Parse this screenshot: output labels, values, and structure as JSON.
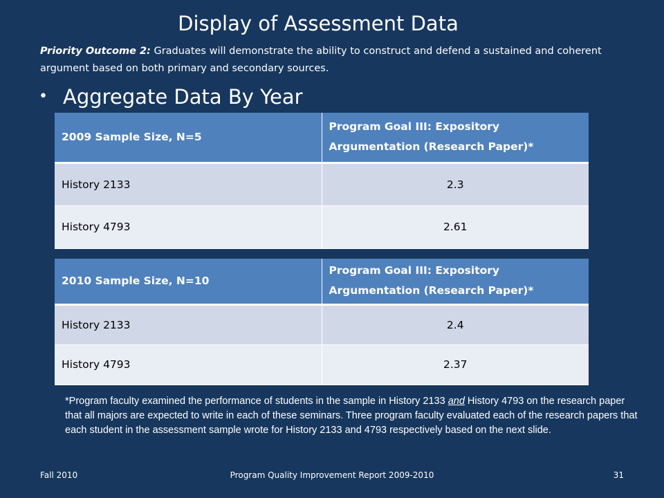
{
  "slide": {
    "title": "Display of Assessment Data",
    "priority_lead": "Priority Outcome 2:",
    "priority_text": " Graduates will demonstrate the ability to construct and defend a sustained and coherent argument based on both primary and secondary sources.",
    "bullet": "Aggregate Data By Year"
  },
  "tables": [
    {
      "header": [
        "2009 Sample Size, N=5",
        "Program Goal III: Expository Argumentation (Research Paper)*"
      ],
      "rows": [
        {
          "course": "History  2133",
          "value": "2.3"
        },
        {
          "course": "History 4793",
          "value": "2.61"
        }
      ]
    },
    {
      "header": [
        "2010 Sample Size, N=10",
        "Program Goal III: Expository Argumentation (Research Paper)*"
      ],
      "rows": [
        {
          "course": "History  2133",
          "value": "2.4"
        },
        {
          "course": "History 4793",
          "value": "2.37"
        }
      ]
    }
  ],
  "note": {
    "part1": "*Program faculty examined the performance of students in the sample in History 2133 ",
    "emph": "and",
    "part2": " History 4793 on the research paper that all majors are expected to write in each of these seminars. Three program faculty evaluated each of the research papers that each student in the assessment sample wrote for History 2133 and 4793 respectively based on the next slide."
  },
  "footer": {
    "left": "Fall 2010",
    "center": "Program Quality Improvement Report 2009-2010",
    "right": "31"
  }
}
